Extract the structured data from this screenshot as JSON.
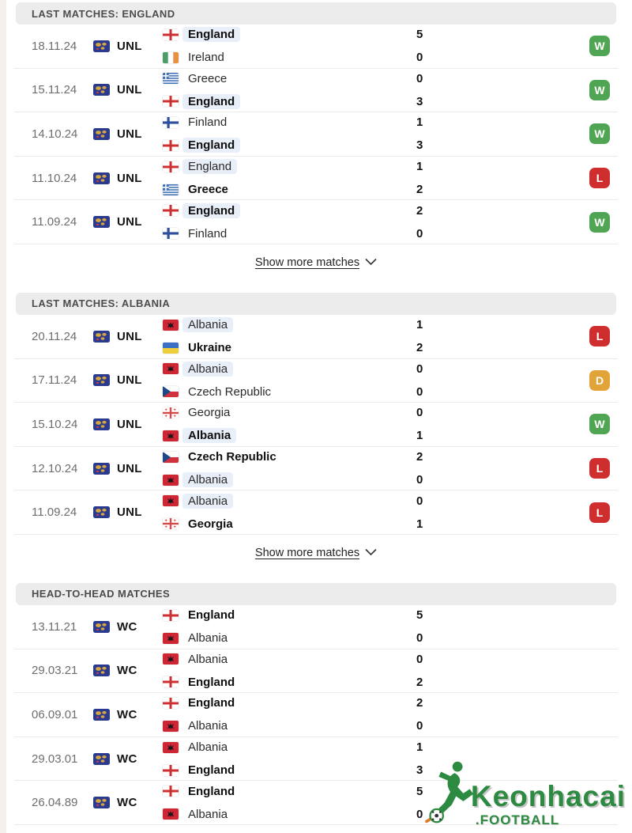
{
  "labels": {
    "show_more": "Show more matches"
  },
  "result_colors": {
    "W": "#4fa554",
    "L": "#cf2e2e",
    "D": "#e2a438"
  },
  "watermark": {
    "brand": "Keonhacai",
    "sub": ".FOOTBALL",
    "color": "#2d8a41"
  },
  "sections": [
    {
      "title": "LAST MATCHES: ENGLAND",
      "show_more": "Show more matches",
      "matches": [
        {
          "date": "18.11.24",
          "competition": "UNL",
          "result": "W",
          "lines": [
            {
              "team": "England",
              "flag": "england",
              "bold": true,
              "highlight": true,
              "score": "5"
            },
            {
              "team": "Ireland",
              "flag": "ireland",
              "bold": false,
              "highlight": false,
              "score": "0"
            }
          ]
        },
        {
          "date": "15.11.24",
          "competition": "UNL",
          "result": "W",
          "lines": [
            {
              "team": "Greece",
              "flag": "greece",
              "bold": false,
              "highlight": false,
              "score": "0"
            },
            {
              "team": "England",
              "flag": "england",
              "bold": true,
              "highlight": true,
              "score": "3"
            }
          ]
        },
        {
          "date": "14.10.24",
          "competition": "UNL",
          "result": "W",
          "lines": [
            {
              "team": "Finland",
              "flag": "finland",
              "bold": false,
              "highlight": false,
              "score": "1"
            },
            {
              "team": "England",
              "flag": "england",
              "bold": true,
              "highlight": true,
              "score": "3"
            }
          ]
        },
        {
          "date": "11.10.24",
          "competition": "UNL",
          "result": "L",
          "lines": [
            {
              "team": "England",
              "flag": "england",
              "bold": false,
              "highlight": true,
              "score": "1"
            },
            {
              "team": "Greece",
              "flag": "greece",
              "bold": true,
              "highlight": false,
              "score": "2"
            }
          ]
        },
        {
          "date": "11.09.24",
          "competition": "UNL",
          "result": "W",
          "lines": [
            {
              "team": "England",
              "flag": "england",
              "bold": true,
              "highlight": true,
              "score": "2"
            },
            {
              "team": "Finland",
              "flag": "finland",
              "bold": false,
              "highlight": false,
              "score": "0"
            }
          ]
        }
      ]
    },
    {
      "title": "LAST MATCHES: ALBANIA",
      "show_more": "Show more matches",
      "matches": [
        {
          "date": "20.11.24",
          "competition": "UNL",
          "result": "L",
          "lines": [
            {
              "team": "Albania",
              "flag": "albania",
              "bold": false,
              "highlight": true,
              "score": "1"
            },
            {
              "team": "Ukraine",
              "flag": "ukraine",
              "bold": true,
              "highlight": false,
              "score": "2"
            }
          ]
        },
        {
          "date": "17.11.24",
          "competition": "UNL",
          "result": "D",
          "lines": [
            {
              "team": "Albania",
              "flag": "albania",
              "bold": false,
              "highlight": true,
              "score": "0"
            },
            {
              "team": "Czech Republic",
              "flag": "czech",
              "bold": false,
              "highlight": false,
              "score": "0"
            }
          ]
        },
        {
          "date": "15.10.24",
          "competition": "UNL",
          "result": "W",
          "lines": [
            {
              "team": "Georgia",
              "flag": "georgia",
              "bold": false,
              "highlight": false,
              "score": "0"
            },
            {
              "team": "Albania",
              "flag": "albania",
              "bold": true,
              "highlight": true,
              "score": "1"
            }
          ]
        },
        {
          "date": "12.10.24",
          "competition": "UNL",
          "result": "L",
          "lines": [
            {
              "team": "Czech Republic",
              "flag": "czech",
              "bold": true,
              "highlight": false,
              "score": "2"
            },
            {
              "team": "Albania",
              "flag": "albania",
              "bold": false,
              "highlight": true,
              "score": "0"
            }
          ]
        },
        {
          "date": "11.09.24",
          "competition": "UNL",
          "result": "L",
          "lines": [
            {
              "team": "Albania",
              "flag": "albania",
              "bold": false,
              "highlight": true,
              "score": "0"
            },
            {
              "team": "Georgia",
              "flag": "georgia",
              "bold": true,
              "highlight": false,
              "score": "1"
            }
          ]
        }
      ]
    },
    {
      "title": "HEAD-TO-HEAD MATCHES",
      "matches": [
        {
          "date": "13.11.21",
          "competition": "WC",
          "lines": [
            {
              "team": "England",
              "flag": "england",
              "bold": true,
              "highlight": false,
              "score": "5"
            },
            {
              "team": "Albania",
              "flag": "albania",
              "bold": false,
              "highlight": false,
              "score": "0"
            }
          ]
        },
        {
          "date": "29.03.21",
          "competition": "WC",
          "lines": [
            {
              "team": "Albania",
              "flag": "albania",
              "bold": false,
              "highlight": false,
              "score": "0"
            },
            {
              "team": "England",
              "flag": "england",
              "bold": true,
              "highlight": false,
              "score": "2"
            }
          ]
        },
        {
          "date": "06.09.01",
          "competition": "WC",
          "lines": [
            {
              "team": "England",
              "flag": "england",
              "bold": true,
              "highlight": false,
              "score": "2"
            },
            {
              "team": "Albania",
              "flag": "albania",
              "bold": false,
              "highlight": false,
              "score": "0"
            }
          ]
        },
        {
          "date": "29.03.01",
          "competition": "WC",
          "lines": [
            {
              "team": "Albania",
              "flag": "albania",
              "bold": false,
              "highlight": false,
              "score": "1"
            },
            {
              "team": "England",
              "flag": "england",
              "bold": true,
              "highlight": false,
              "score": "3"
            }
          ]
        },
        {
          "date": "26.04.89",
          "competition": "WC",
          "lines": [
            {
              "team": "England",
              "flag": "england",
              "bold": true,
              "highlight": false,
              "score": "5"
            },
            {
              "team": "Albania",
              "flag": "albania",
              "bold": false,
              "highlight": false,
              "score": "0"
            }
          ]
        }
      ]
    }
  ]
}
